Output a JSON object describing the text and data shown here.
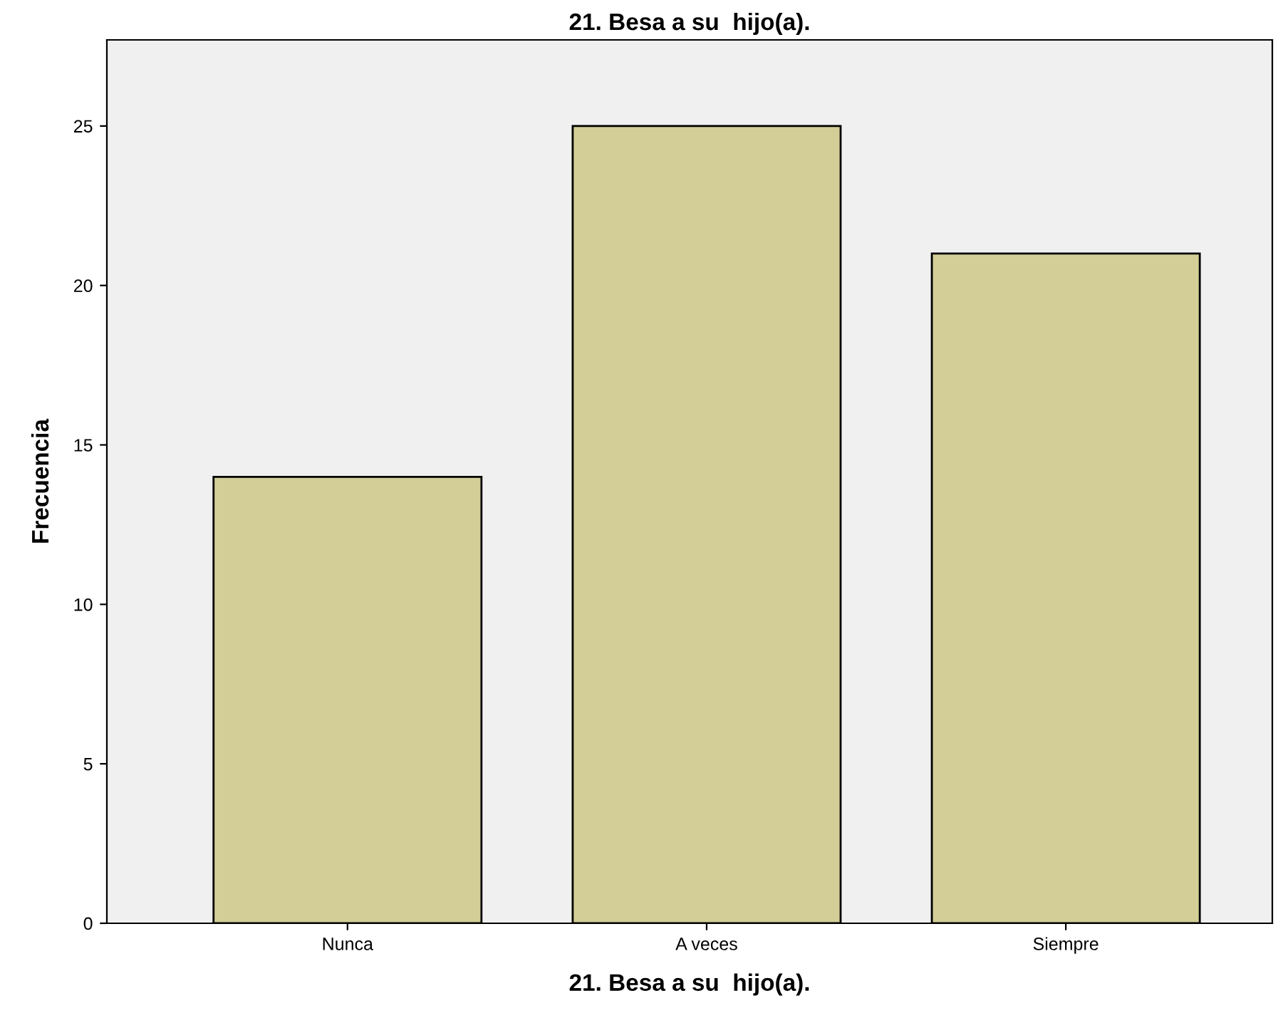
{
  "chart_data": {
    "type": "bar",
    "title": "21. Besa a su  hijo(a).",
    "xlabel": "21. Besa a su  hijo(a).",
    "ylabel": "Frecuencia",
    "categories": [
      "Nunca",
      "A veces",
      "Siempre"
    ],
    "values": [
      14,
      25,
      21
    ],
    "color": "#d3ce97",
    "ylim": [
      0,
      27.7
    ],
    "yticks": [
      0,
      5,
      10,
      15,
      20,
      25
    ],
    "grid": false,
    "legend": false
  }
}
